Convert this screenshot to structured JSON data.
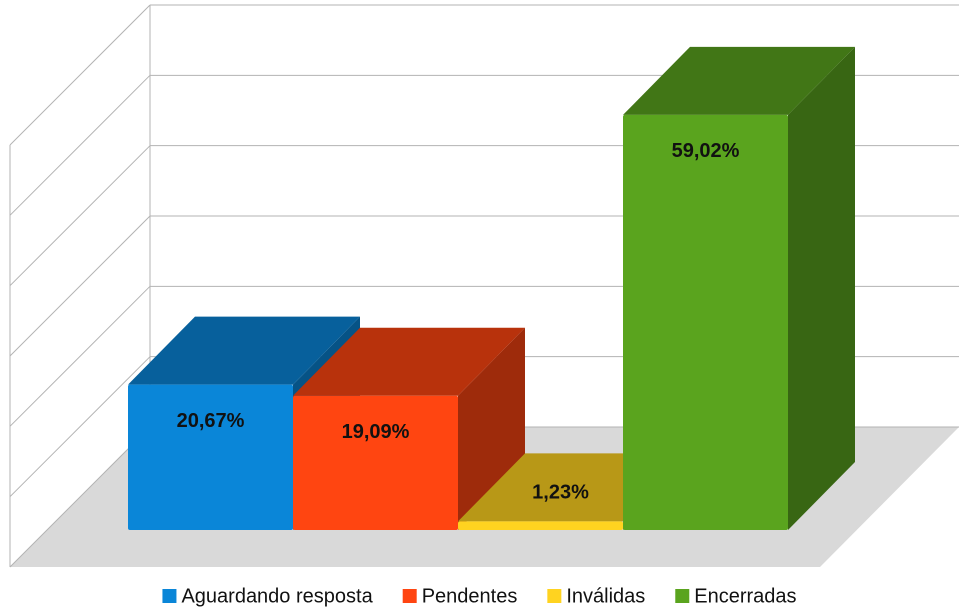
{
  "chart_data": {
    "type": "bar3d",
    "series": [
      {
        "name": "Aguardando resposta",
        "color": "#0a86d8",
        "values": [
          20.67
        ],
        "value_labels": [
          "20,67%"
        ]
      },
      {
        "name": "Pendentes",
        "color": "#ff4511",
        "values": [
          19.09
        ],
        "value_labels": [
          "19,09%"
        ]
      },
      {
        "name": "Inválidas",
        "color": "#ffd320",
        "values": [
          1.23
        ],
        "value_labels": [
          "1,23%"
        ]
      },
      {
        "name": "Encerradas",
        "color": "#5aa41e",
        "values": [
          59.02
        ],
        "value_labels": [
          "59,02%"
        ]
      }
    ],
    "ylim": [
      0,
      60
    ],
    "yticks": [
      0,
      10,
      20,
      30,
      40,
      50,
      60
    ],
    "grid": true,
    "legend": "bottom"
  }
}
